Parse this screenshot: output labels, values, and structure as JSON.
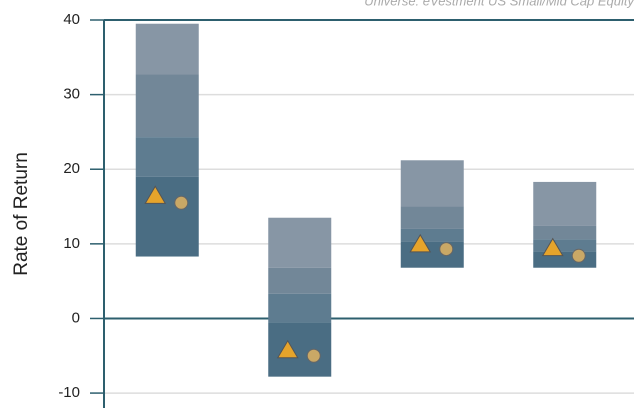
{
  "chart_data": {
    "type": "floating-bands",
    "subtitle": "Universe: eVestment US Small/Mid Cap Equity",
    "ylabel": "Rate of Return",
    "categories": [
      null,
      null,
      null,
      null
    ],
    "levels": [
      [
        39.5,
        32.7,
        24.3,
        19.0,
        8.3
      ],
      [
        13.5,
        6.8,
        3.3,
        -0.5,
        -7.8
      ],
      [
        21.2,
        15.0,
        12.0,
        10.3,
        6.8
      ],
      [
        18.3,
        12.4,
        10.6,
        9.0,
        6.8
      ]
    ],
    "band_colors": [
      "#8796a5",
      "#728798",
      "#5e7c90",
      "#4a6d83"
    ],
    "series": [
      {
        "marker": "triangle",
        "color": "#e6a42b",
        "values": [
          16.5,
          -4.2,
          10.0,
          9.5
        ]
      },
      {
        "marker": "circle",
        "color": "#c9a866",
        "values": [
          15.5,
          -5.0,
          9.3,
          8.4
        ]
      }
    ],
    "ylim": [
      -12,
      40
    ],
    "yticks": [
      -10,
      0,
      10,
      20,
      30,
      40
    ],
    "grid": true
  }
}
